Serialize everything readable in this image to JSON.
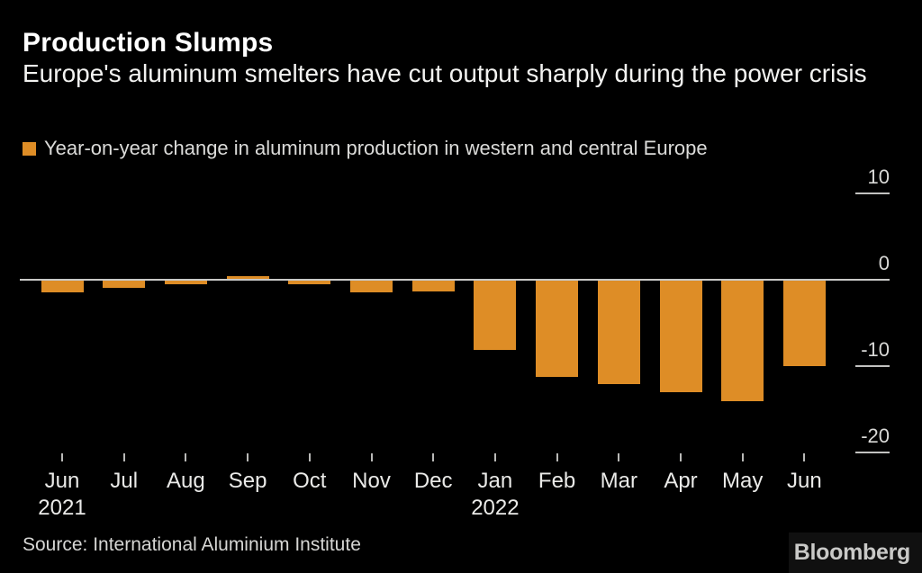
{
  "header": {
    "title": "Production Slumps",
    "subtitle": "Europe's aluminum smelters have cut output sharply during the power crisis"
  },
  "legend": {
    "label": "Year-on-year change in aluminum production in western and central Europe"
  },
  "chart_data": {
    "type": "bar",
    "title": "Production Slumps",
    "series_name": "Year-on-year change in aluminum production in western and central Europe",
    "categories": [
      "Jun 2021",
      "Jul 2021",
      "Aug 2021",
      "Sep 2021",
      "Oct 2021",
      "Nov 2021",
      "Dec 2021",
      "Jan 2022",
      "Feb 2022",
      "Mar 2022",
      "Apr 2022",
      "May 2022",
      "Jun 2022"
    ],
    "values": [
      -1.5,
      -0.9,
      -0.5,
      0.4,
      -0.5,
      -1.5,
      -1.4,
      -8.1,
      -11.2,
      -12.1,
      -13,
      -14.1,
      -10
    ],
    "x_tick_labels": [
      "Jun",
      "Jul",
      "Aug",
      "Sep",
      "Oct",
      "Nov",
      "Dec",
      "Jan",
      "Feb",
      "Mar",
      "Apr",
      "May",
      "Jun"
    ],
    "x_year_labels": [
      {
        "index": 0,
        "label": "2021"
      },
      {
        "index": 7,
        "label": "2022"
      }
    ],
    "yticks": [
      10,
      0,
      -10,
      -20
    ],
    "ylim": [
      -22,
      12
    ],
    "bar_color": "#DE8D26",
    "axis_color": "#C9C9C7",
    "grid": "off",
    "legend_position": "top-left"
  },
  "footer": {
    "source": "Source: International Aluminium Institute",
    "brand": "Bloomberg"
  }
}
